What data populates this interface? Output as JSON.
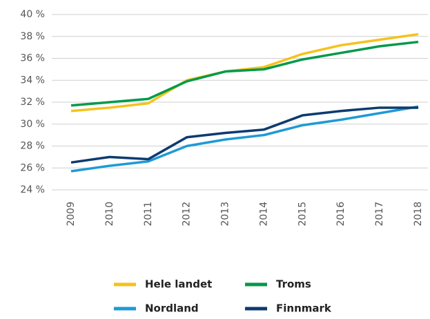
{
  "chart_data": {
    "type": "line",
    "categories": [
      "2009",
      "2010",
      "2011",
      "2012",
      "2013",
      "2014",
      "2015",
      "2016",
      "2017",
      "2018"
    ],
    "series": [
      {
        "name": "Hele landet",
        "color": "#f5c21b",
        "values": [
          31.2,
          31.5,
          31.9,
          34.0,
          34.8,
          35.2,
          36.4,
          37.2,
          37.7,
          38.2
        ]
      },
      {
        "name": "Troms",
        "color": "#009a49",
        "values": [
          31.7,
          32.0,
          32.3,
          33.9,
          34.8,
          35.0,
          35.9,
          36.5,
          37.1,
          37.5
        ]
      },
      {
        "name": "Nordland",
        "color": "#1e9ad6",
        "values": [
          25.7,
          26.2,
          26.6,
          28.0,
          28.6,
          29.0,
          29.9,
          30.4,
          31.0,
          31.6
        ]
      },
      {
        "name": "Finnmark",
        "color": "#0c3b70",
        "values": [
          26.5,
          27.0,
          26.8,
          28.8,
          29.2,
          29.5,
          30.8,
          31.2,
          31.5,
          31.5
        ]
      }
    ],
    "ylim": [
      24,
      40
    ],
    "yticks": [
      {
        "value": 24,
        "label": "24 %"
      },
      {
        "value": 26,
        "label": "26 %"
      },
      {
        "value": 28,
        "label": "28 %"
      },
      {
        "value": 30,
        "label": "30 %"
      },
      {
        "value": 32,
        "label": "32 %"
      },
      {
        "value": 34,
        "label": "34 %"
      },
      {
        "value": 36,
        "label": "36 %"
      },
      {
        "value": 38,
        "label": "38 %"
      },
      {
        "value": 40,
        "label": "40 %"
      }
    ],
    "grid": true
  }
}
